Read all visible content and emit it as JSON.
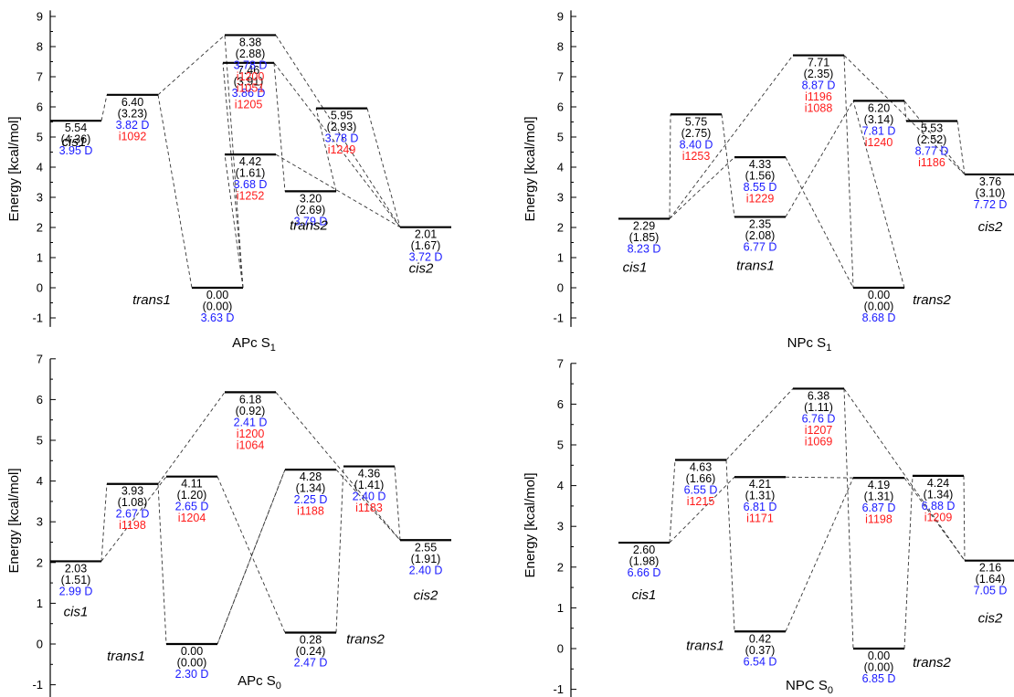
{
  "colors": {
    "energy": "#000000",
    "dipole": "#1a1aff",
    "freq": "#ff1a1a",
    "level": "#000000",
    "connector": "#333333"
  },
  "chart_data": [
    {
      "type": "energy-level-diagram",
      "title": "APc S",
      "title_sub": "1",
      "ylabel": "Energy [kcal/mol]",
      "ylim": [
        -1.3,
        9.2
      ],
      "yticks": [
        -1,
        0,
        1,
        2,
        3,
        4,
        5,
        6,
        7,
        8,
        9
      ],
      "levels": [
        {
          "id": "cis1",
          "energy": 5.54,
          "labels": [
            "5.54",
            "(4.36)",
            "3.95 D"
          ],
          "name": "cis1"
        },
        {
          "id": "ts1",
          "energy": 6.4,
          "labels": [
            "6.40",
            "(3.23)",
            "3.82 D",
            "i1092"
          ]
        },
        {
          "id": "trans1",
          "energy": 0.0,
          "labels": [
            "0.00",
            "(0.00)",
            "3.63 D"
          ],
          "name": "trans1"
        },
        {
          "id": "ts2",
          "energy": 7.46,
          "labels": [
            "7.46",
            "(3.91)",
            "3.86 D",
            "i1205"
          ]
        },
        {
          "id": "ts3",
          "energy": 8.38,
          "labels": [
            "8.38",
            "(2.88)",
            "3.78 D",
            "i1200",
            "i1051"
          ]
        },
        {
          "id": "ts4",
          "energy": 4.42,
          "labels": [
            "4.42",
            "(1.61)",
            "3.68 D",
            "i1252"
          ]
        },
        {
          "id": "trans2",
          "energy": 3.2,
          "labels": [
            "3.20",
            "(2.69)",
            "3.79 D"
          ],
          "name": "trans2"
        },
        {
          "id": "ts5",
          "energy": 5.95,
          "labels": [
            "5.95",
            "(2.93)",
            "3.78 D",
            "i1249"
          ]
        },
        {
          "id": "cis2",
          "energy": 2.01,
          "labels": [
            "2.01",
            "(1.67)",
            "3.72 D"
          ],
          "name": "cis2"
        }
      ]
    },
    {
      "type": "energy-level-diagram",
      "title": "NPc S",
      "title_sub": "1",
      "ylabel": "Energy [kcal/mol]",
      "ylim": [
        -1.3,
        9.2
      ],
      "yticks": [
        -1,
        0,
        1,
        2,
        3,
        4,
        5,
        6,
        7,
        8,
        9
      ],
      "levels": [
        {
          "id": "cis1",
          "energy": 2.29,
          "labels": [
            "2.29",
            "(1.85)",
            "8.23 D"
          ],
          "name": "cis1"
        },
        {
          "id": "ts1",
          "energy": 5.75,
          "labels": [
            "5.75",
            "(2.75)",
            "8.40 D",
            "i1253"
          ]
        },
        {
          "id": "trans1",
          "energy": 2.35,
          "labels": [
            "2.35",
            "(2.08)",
            "6.77 D"
          ],
          "name": "trans1"
        },
        {
          "id": "ts2",
          "energy": 4.33,
          "labels": [
            "4.33",
            "(1.56)",
            "8.55 D",
            "i1229"
          ]
        },
        {
          "id": "ts3",
          "energy": 7.71,
          "labels": [
            "7.71",
            "(2.35)",
            "8.87 D",
            "i1196",
            "i1088"
          ]
        },
        {
          "id": "trans2",
          "energy": 0.0,
          "labels": [
            "0.00",
            "(0.00)",
            "8.68 D"
          ],
          "name": "trans2"
        },
        {
          "id": "ts4",
          "energy": 6.2,
          "labels": [
            "6.20",
            "(3.14)",
            "7.81 D",
            "i1240"
          ]
        },
        {
          "id": "ts5",
          "energy": 5.53,
          "labels": [
            "5.53",
            "(2.52)",
            "8.77 D",
            "i1186"
          ]
        },
        {
          "id": "cis2",
          "energy": 3.76,
          "labels": [
            "3.76",
            "(3.10)",
            "7.72 D"
          ],
          "name": "cis2"
        }
      ]
    },
    {
      "type": "energy-level-diagram",
      "title": "APc S",
      "title_sub": "0",
      "ylabel": "Energy [kcal/mol]",
      "ylim": [
        -1.3,
        7.0
      ],
      "yticks": [
        -1,
        0,
        1,
        2,
        3,
        4,
        5,
        6,
        7
      ],
      "levels": [
        {
          "id": "cis1",
          "energy": 2.03,
          "labels": [
            "2.03",
            "(1.51)",
            "2.99 D"
          ],
          "name": "cis1"
        },
        {
          "id": "ts1",
          "energy": 3.93,
          "labels": [
            "3.93",
            "(1.08)",
            "2.67 D",
            "i1198"
          ]
        },
        {
          "id": "trans1",
          "energy": 0.0,
          "labels": [
            "0.00",
            "(0.00)",
            "2.30 D"
          ],
          "name": "trans1"
        },
        {
          "id": "ts2",
          "energy": 4.11,
          "labels": [
            "4.11",
            "(1.20)",
            "2.65 D",
            "i1204"
          ]
        },
        {
          "id": "ts3",
          "energy": 6.18,
          "labels": [
            "6.18",
            "(0.92)",
            "2.41 D",
            "i1200",
            "i1064"
          ]
        },
        {
          "id": "ts4",
          "energy": 4.28,
          "labels": [
            "4.28",
            "(1.34)",
            "2.25 D",
            "i1188"
          ]
        },
        {
          "id": "trans2",
          "energy": 0.28,
          "labels": [
            "0.28",
            "(0.24)",
            "2.47 D"
          ],
          "name": "trans2"
        },
        {
          "id": "ts5",
          "energy": 4.36,
          "labels": [
            "4.36",
            "(1.41)",
            "2.40 D",
            "i1183"
          ]
        },
        {
          "id": "cis2",
          "energy": 2.55,
          "labels": [
            "2.55",
            "(1.91)",
            "2.40 D"
          ],
          "name": "cis2"
        }
      ]
    },
    {
      "type": "energy-level-diagram",
      "title": "NPC S",
      "title_sub": "0",
      "ylabel": "Energy [kcal/mol]",
      "ylim": [
        -1.3,
        7.0
      ],
      "yticks": [
        -1,
        0,
        1,
        2,
        3,
        4,
        5,
        6,
        7
      ],
      "levels": [
        {
          "id": "cis1",
          "energy": 2.6,
          "labels": [
            "2.60",
            "(1.98)",
            "6.66 D"
          ],
          "name": "cis1"
        },
        {
          "id": "ts1",
          "energy": 4.63,
          "labels": [
            "4.63",
            "(1.66)",
            "6.55 D",
            "i1215"
          ]
        },
        {
          "id": "trans1",
          "energy": 0.42,
          "labels": [
            "0.42",
            "(0.37)",
            "6.54 D"
          ],
          "name": "trans1"
        },
        {
          "id": "ts2",
          "energy": 4.21,
          "labels": [
            "4.21",
            "(1.31)",
            "6.81 D",
            "i1171"
          ]
        },
        {
          "id": "ts3",
          "energy": 6.38,
          "labels": [
            "6.38",
            "(1.11)",
            "6.76 D",
            "i1207",
            "i1069"
          ]
        },
        {
          "id": "ts4",
          "energy": 4.19,
          "labels": [
            "4.19",
            "(1.31)",
            "6.87 D",
            "i1198"
          ]
        },
        {
          "id": "trans2",
          "energy": 0.0,
          "labels": [
            "0.00",
            "(0.00)",
            "6.85 D"
          ],
          "name": "trans2"
        },
        {
          "id": "ts5",
          "energy": 4.24,
          "labels": [
            "4.24",
            "(1.34)",
            "6.88 D",
            "i1209"
          ]
        },
        {
          "id": "cis2",
          "energy": 2.16,
          "labels": [
            "2.16",
            "(1.64)",
            "7.05 D"
          ],
          "name": "cis2"
        }
      ]
    }
  ]
}
